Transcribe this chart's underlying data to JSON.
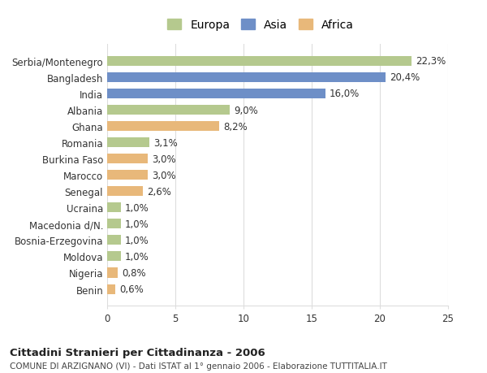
{
  "countries": [
    "Serbia/Montenegro",
    "Bangladesh",
    "India",
    "Albania",
    "Ghana",
    "Romania",
    "Burkina Faso",
    "Marocco",
    "Senegal",
    "Ucraina",
    "Macedonia d/N.",
    "Bosnia-Erzegovina",
    "Moldova",
    "Nigeria",
    "Benin"
  ],
  "values": [
    22.3,
    20.4,
    16.0,
    9.0,
    8.2,
    3.1,
    3.0,
    3.0,
    2.6,
    1.0,
    1.0,
    1.0,
    1.0,
    0.8,
    0.6
  ],
  "labels": [
    "22,3%",
    "20,4%",
    "16,0%",
    "9,0%",
    "8,2%",
    "3,1%",
    "3,0%",
    "3,0%",
    "2,6%",
    "1,0%",
    "1,0%",
    "1,0%",
    "1,0%",
    "0,8%",
    "0,6%"
  ],
  "continents": [
    "Europa",
    "Asia",
    "Asia",
    "Europa",
    "Africa",
    "Europa",
    "Africa",
    "Africa",
    "Africa",
    "Europa",
    "Europa",
    "Europa",
    "Europa",
    "Africa",
    "Africa"
  ],
  "colors": {
    "Europa": "#b5c98e",
    "Asia": "#6e8fc7",
    "Africa": "#e8b87a"
  },
  "legend_order": [
    "Europa",
    "Asia",
    "Africa"
  ],
  "xlim": [
    0,
    25
  ],
  "xticks": [
    0,
    5,
    10,
    15,
    20,
    25
  ],
  "title_main": "Cittadini Stranieri per Cittadinanza - 2006",
  "title_sub": "COMUNE DI ARZIGNANO (VI) - Dati ISTAT al 1° gennaio 2006 - Elaborazione TUTTITALIA.IT",
  "background_color": "#ffffff",
  "grid_color": "#dddddd",
  "bar_height": 0.6,
  "label_fontsize": 8.5,
  "tick_fontsize": 8.5,
  "legend_fontsize": 10
}
